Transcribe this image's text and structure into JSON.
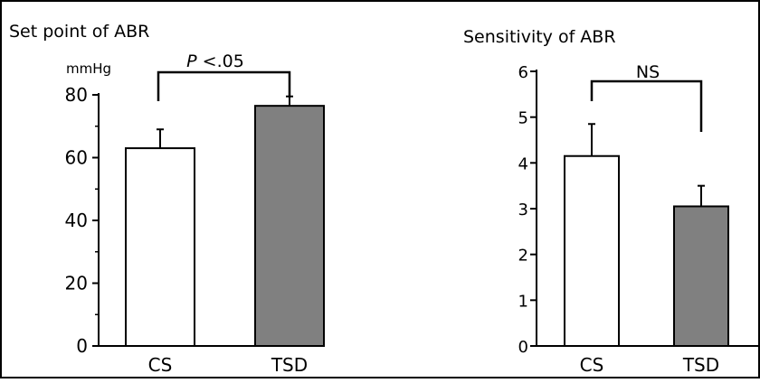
{
  "chart_data": [
    {
      "type": "bar",
      "title": "Set point of ABR",
      "ylabel": "mmHg",
      "ylim": [
        0,
        80
      ],
      "yticks": [
        0,
        20,
        40,
        60,
        80
      ],
      "categories": [
        "CS",
        "TSD"
      ],
      "values": [
        63,
        76.5
      ],
      "errors": [
        6,
        3
      ],
      "bar_colors": [
        "#ffffff",
        "#808080"
      ],
      "significance": {
        "label_prefix": "P",
        "label_rest": " <.05"
      }
    },
    {
      "type": "bar",
      "title": "Sensitivity of ABR",
      "ylabel": "",
      "ylim": [
        0,
        6
      ],
      "yticks": [
        0,
        1,
        2,
        3,
        4,
        5,
        6
      ],
      "categories": [
        "CS",
        "TSD"
      ],
      "values": [
        4.15,
        3.05
      ],
      "errors": [
        0.7,
        0.45
      ],
      "bar_colors": [
        "#ffffff",
        "#808080"
      ],
      "significance": {
        "label_prefix": "",
        "label_rest": "NS"
      }
    }
  ]
}
